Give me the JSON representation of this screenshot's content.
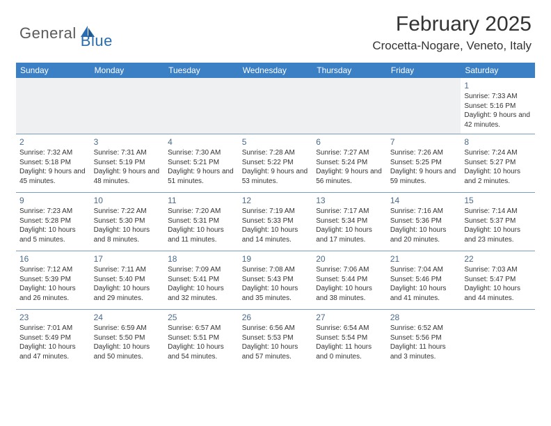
{
  "logo": {
    "general": "General",
    "blue": "Blue"
  },
  "title": "February 2025",
  "location": "Crocetta-Nogare, Veneto, Italy",
  "colors": {
    "header_bg": "#3b7fc4",
    "header_fg": "#ffffff",
    "divider": "#7a9cc0",
    "daynum": "#4a6a8a",
    "logo_gray": "#5a5a5a",
    "logo_blue": "#2a6db0",
    "empty_bg": "#eef0f2"
  },
  "day_headers": [
    "Sunday",
    "Monday",
    "Tuesday",
    "Wednesday",
    "Thursday",
    "Friday",
    "Saturday"
  ],
  "weeks": [
    [
      null,
      null,
      null,
      null,
      null,
      null,
      {
        "n": "1",
        "sr": "Sunrise: 7:33 AM",
        "ss": "Sunset: 5:16 PM",
        "dl": "Daylight: 9 hours and 42 minutes."
      }
    ],
    [
      {
        "n": "2",
        "sr": "Sunrise: 7:32 AM",
        "ss": "Sunset: 5:18 PM",
        "dl": "Daylight: 9 hours and 45 minutes."
      },
      {
        "n": "3",
        "sr": "Sunrise: 7:31 AM",
        "ss": "Sunset: 5:19 PM",
        "dl": "Daylight: 9 hours and 48 minutes."
      },
      {
        "n": "4",
        "sr": "Sunrise: 7:30 AM",
        "ss": "Sunset: 5:21 PM",
        "dl": "Daylight: 9 hours and 51 minutes."
      },
      {
        "n": "5",
        "sr": "Sunrise: 7:28 AM",
        "ss": "Sunset: 5:22 PM",
        "dl": "Daylight: 9 hours and 53 minutes."
      },
      {
        "n": "6",
        "sr": "Sunrise: 7:27 AM",
        "ss": "Sunset: 5:24 PM",
        "dl": "Daylight: 9 hours and 56 minutes."
      },
      {
        "n": "7",
        "sr": "Sunrise: 7:26 AM",
        "ss": "Sunset: 5:25 PM",
        "dl": "Daylight: 9 hours and 59 minutes."
      },
      {
        "n": "8",
        "sr": "Sunrise: 7:24 AM",
        "ss": "Sunset: 5:27 PM",
        "dl": "Daylight: 10 hours and 2 minutes."
      }
    ],
    [
      {
        "n": "9",
        "sr": "Sunrise: 7:23 AM",
        "ss": "Sunset: 5:28 PM",
        "dl": "Daylight: 10 hours and 5 minutes."
      },
      {
        "n": "10",
        "sr": "Sunrise: 7:22 AM",
        "ss": "Sunset: 5:30 PM",
        "dl": "Daylight: 10 hours and 8 minutes."
      },
      {
        "n": "11",
        "sr": "Sunrise: 7:20 AM",
        "ss": "Sunset: 5:31 PM",
        "dl": "Daylight: 10 hours and 11 minutes."
      },
      {
        "n": "12",
        "sr": "Sunrise: 7:19 AM",
        "ss": "Sunset: 5:33 PM",
        "dl": "Daylight: 10 hours and 14 minutes."
      },
      {
        "n": "13",
        "sr": "Sunrise: 7:17 AM",
        "ss": "Sunset: 5:34 PM",
        "dl": "Daylight: 10 hours and 17 minutes."
      },
      {
        "n": "14",
        "sr": "Sunrise: 7:16 AM",
        "ss": "Sunset: 5:36 PM",
        "dl": "Daylight: 10 hours and 20 minutes."
      },
      {
        "n": "15",
        "sr": "Sunrise: 7:14 AM",
        "ss": "Sunset: 5:37 PM",
        "dl": "Daylight: 10 hours and 23 minutes."
      }
    ],
    [
      {
        "n": "16",
        "sr": "Sunrise: 7:12 AM",
        "ss": "Sunset: 5:39 PM",
        "dl": "Daylight: 10 hours and 26 minutes."
      },
      {
        "n": "17",
        "sr": "Sunrise: 7:11 AM",
        "ss": "Sunset: 5:40 PM",
        "dl": "Daylight: 10 hours and 29 minutes."
      },
      {
        "n": "18",
        "sr": "Sunrise: 7:09 AM",
        "ss": "Sunset: 5:41 PM",
        "dl": "Daylight: 10 hours and 32 minutes."
      },
      {
        "n": "19",
        "sr": "Sunrise: 7:08 AM",
        "ss": "Sunset: 5:43 PM",
        "dl": "Daylight: 10 hours and 35 minutes."
      },
      {
        "n": "20",
        "sr": "Sunrise: 7:06 AM",
        "ss": "Sunset: 5:44 PM",
        "dl": "Daylight: 10 hours and 38 minutes."
      },
      {
        "n": "21",
        "sr": "Sunrise: 7:04 AM",
        "ss": "Sunset: 5:46 PM",
        "dl": "Daylight: 10 hours and 41 minutes."
      },
      {
        "n": "22",
        "sr": "Sunrise: 7:03 AM",
        "ss": "Sunset: 5:47 PM",
        "dl": "Daylight: 10 hours and 44 minutes."
      }
    ],
    [
      {
        "n": "23",
        "sr": "Sunrise: 7:01 AM",
        "ss": "Sunset: 5:49 PM",
        "dl": "Daylight: 10 hours and 47 minutes."
      },
      {
        "n": "24",
        "sr": "Sunrise: 6:59 AM",
        "ss": "Sunset: 5:50 PM",
        "dl": "Daylight: 10 hours and 50 minutes."
      },
      {
        "n": "25",
        "sr": "Sunrise: 6:57 AM",
        "ss": "Sunset: 5:51 PM",
        "dl": "Daylight: 10 hours and 54 minutes."
      },
      {
        "n": "26",
        "sr": "Sunrise: 6:56 AM",
        "ss": "Sunset: 5:53 PM",
        "dl": "Daylight: 10 hours and 57 minutes."
      },
      {
        "n": "27",
        "sr": "Sunrise: 6:54 AM",
        "ss": "Sunset: 5:54 PM",
        "dl": "Daylight: 11 hours and 0 minutes."
      },
      {
        "n": "28",
        "sr": "Sunrise: 6:52 AM",
        "ss": "Sunset: 5:56 PM",
        "dl": "Daylight: 11 hours and 3 minutes."
      },
      null
    ]
  ]
}
